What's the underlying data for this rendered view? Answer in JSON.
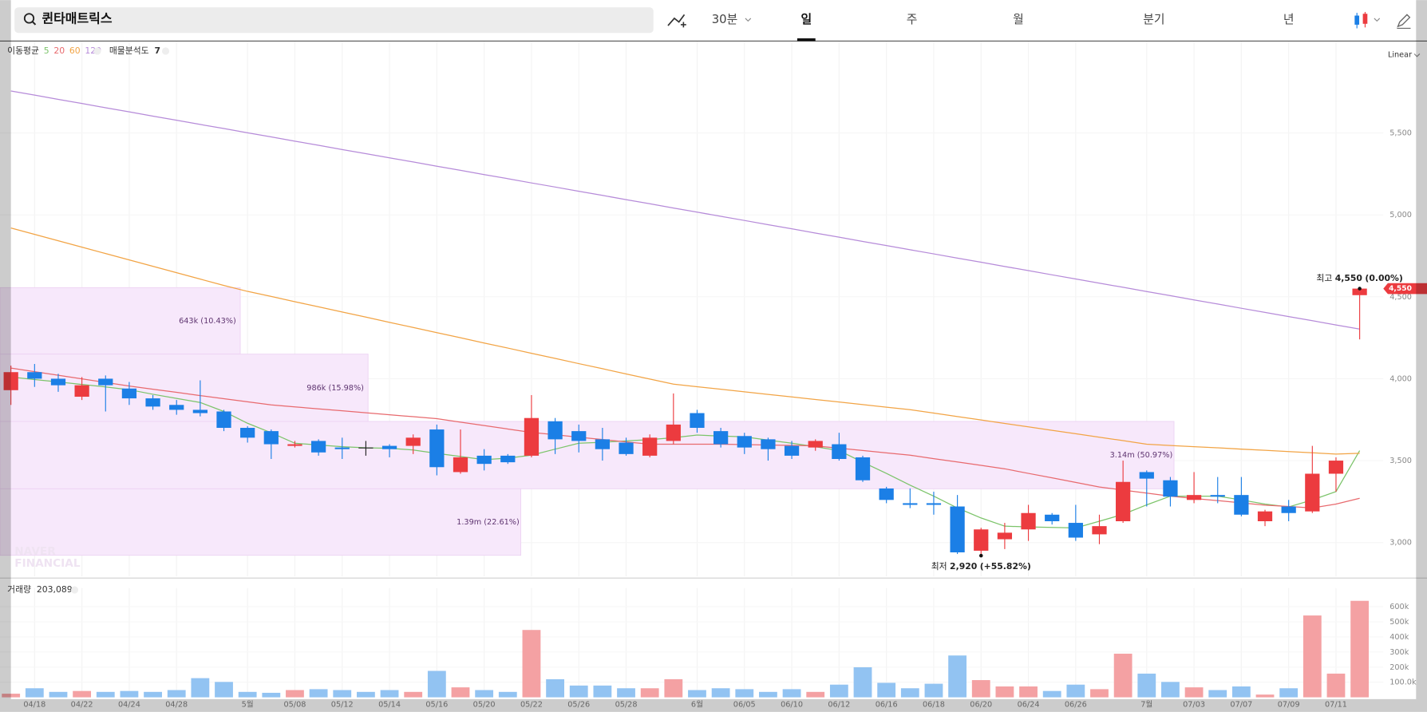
{
  "ui": {
    "search": "퀸타매트릭스",
    "interval": "30분",
    "tabs": [
      "일",
      "주",
      "월",
      "분기",
      "년"
    ],
    "scale": "Linear",
    "watermark": [
      "NAVER",
      "FINANCIAL"
    ]
  },
  "chart_data": [
    {
      "type": "candlestick",
      "ma_label": "이동평균",
      "categories": [
        null,
        "04/18",
        null,
        "04/22",
        null,
        "04/24",
        null,
        "04/28",
        null,
        null,
        "5월",
        null,
        "05/08",
        null,
        "05/12",
        null,
        "05/14",
        null,
        "05/16",
        null,
        "05/20",
        null,
        "05/22",
        null,
        "05/26",
        null,
        "05/28",
        null,
        null,
        "6월",
        null,
        "06/05",
        null,
        "06/10",
        null,
        "06/12",
        null,
        "06/16",
        null,
        "06/18",
        null,
        "06/20",
        null,
        "06/24",
        null,
        "06/26",
        null,
        null,
        "7월",
        null,
        "07/03",
        null,
        "07/07",
        null,
        "07/09",
        null,
        "07/11",
        null
      ],
      "open": [
        3930,
        4040,
        4000,
        3890,
        4000,
        3940,
        3880,
        3840,
        3810,
        3800,
        3700,
        3680,
        3590,
        3620,
        3580,
        3580,
        3590,
        3590,
        3690,
        3430,
        3530,
        3530,
        3530,
        3740,
        3680,
        3630,
        3610,
        3530,
        3620,
        3790,
        3680,
        3650,
        3630,
        3590,
        3580,
        3600,
        3520,
        3330,
        3240,
        3240,
        3220,
        2950,
        3020,
        3080,
        3170,
        3120,
        3050,
        3130,
        3430,
        3380,
        3260,
        3290,
        3290,
        3130,
        3220,
        3190,
        3420,
        4510
      ],
      "high": [
        4080,
        4090,
        4030,
        4010,
        4020,
        3980,
        3900,
        3870,
        3990,
        3810,
        3710,
        3690,
        3620,
        3630,
        3640,
        3620,
        3600,
        3660,
        3720,
        3690,
        3570,
        3540,
        3900,
        3760,
        3720,
        3700,
        3640,
        3660,
        3910,
        3810,
        3700,
        3670,
        3640,
        3620,
        3630,
        3670,
        3530,
        3340,
        3330,
        3310,
        3290,
        3090,
        3120,
        3230,
        3180,
        3230,
        3170,
        3500,
        3440,
        3400,
        3430,
        3400,
        3400,
        3200,
        3260,
        3590,
        3520,
        4550
      ],
      "low": [
        3840,
        3950,
        3920,
        3870,
        3800,
        3840,
        3810,
        3780,
        3770,
        3680,
        3610,
        3510,
        3580,
        3530,
        3510,
        3530,
        3520,
        3540,
        3410,
        3420,
        3440,
        3480,
        3520,
        3540,
        3550,
        3500,
        3530,
        3520,
        3600,
        3670,
        3580,
        3540,
        3500,
        3510,
        3560,
        3500,
        3370,
        3240,
        3210,
        3170,
        2930,
        2920,
        2960,
        3010,
        3110,
        3010,
        2990,
        3120,
        3220,
        3220,
        3240,
        3240,
        3160,
        3100,
        3130,
        3180,
        3310,
        4240
      ],
      "close": [
        4040,
        4000,
        3960,
        3960,
        3960,
        3880,
        3830,
        3810,
        3790,
        3700,
        3640,
        3600,
        3600,
        3550,
        3570,
        3580,
        3570,
        3640,
        3460,
        3520,
        3480,
        3490,
        3760,
        3630,
        3620,
        3570,
        3540,
        3640,
        3720,
        3700,
        3600,
        3580,
        3570,
        3530,
        3620,
        3510,
        3380,
        3260,
        3230,
        3230,
        2940,
        3080,
        3060,
        3180,
        3130,
        3030,
        3100,
        3370,
        3390,
        3280,
        3290,
        3280,
        3170,
        3190,
        3180,
        3420,
        3500,
        4550
      ],
      "up_color": "#ec3b3f",
      "down_color": "#1b7fe6",
      "flat_color": "#222222",
      "series": [
        {
          "name": "5",
          "color": "#7cc46a",
          "values": [
            4010,
            3995,
            3980,
            3965,
            3950,
            3933,
            3905,
            3880,
            3855,
            3800,
            3728,
            3670,
            3606,
            3595,
            3585,
            3578,
            3575,
            3565,
            3544,
            3525,
            3506,
            3515,
            3533,
            3570,
            3606,
            3612,
            3620,
            3628,
            3640,
            3656,
            3650,
            3645,
            3625,
            3606,
            3585,
            3561,
            3490,
            3422,
            3350,
            3283,
            3211,
            3150,
            3100,
            3095,
            3092,
            3089,
            3130,
            3172,
            3230,
            3283,
            3283,
            3283,
            3260,
            3235,
            3217,
            3260,
            3311,
            3561
          ]
        },
        {
          "name": "20",
          "color": "#e86a6e",
          "values": [
            4065,
            4043,
            4021,
            3999,
            3977,
            3955,
            3936,
            3917,
            3897,
            3878,
            3859,
            3840,
            3828,
            3816,
            3804,
            3792,
            3780,
            3768,
            3756,
            3735,
            3714,
            3693,
            3672,
            3658,
            3643,
            3629,
            3614,
            3600,
            3600,
            3600,
            3600,
            3598,
            3595,
            3593,
            3590,
            3576,
            3562,
            3547,
            3533,
            3512,
            3492,
            3471,
            3450,
            3422,
            3395,
            3367,
            3339,
            3320,
            3302,
            3283,
            3269,
            3256,
            3242,
            3228,
            3220,
            3211,
            3235,
            3270
          ]
        },
        {
          "name": "60",
          "color": "#f2a445",
          "values": [
            4920,
            4881,
            4842,
            4803,
            4764,
            4725,
            4686,
            4647,
            4608,
            4569,
            4533,
            4502,
            4470,
            4439,
            4407,
            4376,
            4344,
            4313,
            4281,
            4250,
            4218,
            4187,
            4155,
            4124,
            4092,
            4061,
            4029,
            3998,
            3967,
            3951,
            3936,
            3920,
            3904,
            3889,
            3873,
            3858,
            3842,
            3826,
            3811,
            3790,
            3769,
            3748,
            3727,
            3706,
            3685,
            3664,
            3643,
            3622,
            3600,
            3592,
            3585,
            3578,
            3570,
            3563,
            3555,
            3548,
            3540,
            3545
          ]
        },
        {
          "name": "120",
          "color": "#b68bd9",
          "values": [
            5756,
            5731,
            5705,
            5680,
            5654,
            5629,
            5603,
            5578,
            5552,
            5527,
            5501,
            5476,
            5450,
            5425,
            5399,
            5374,
            5348,
            5323,
            5297,
            5272,
            5246,
            5221,
            5195,
            5170,
            5144,
            5119,
            5093,
            5068,
            5042,
            5017,
            4991,
            4966,
            4940,
            4915,
            4889,
            4864,
            4838,
            4813,
            4787,
            4762,
            4736,
            4711,
            4685,
            4660,
            4634,
            4609,
            4583,
            4558,
            4532,
            4507,
            4481,
            4456,
            4430,
            4405,
            4379,
            4354,
            4328,
            4303
          ]
        }
      ],
      "ylim": [
        2794,
        6061
      ],
      "yticks": [
        {
          "value": 3000,
          "label": "3,000"
        },
        {
          "value": 3500,
          "label": "3,500"
        },
        {
          "value": 4000,
          "label": "4,000"
        },
        {
          "value": 4500,
          "label": "4,500"
        },
        {
          "value": 5000,
          "label": "5,000"
        },
        {
          "value": 5500,
          "label": "5,500"
        }
      ],
      "grid": true,
      "volume_profile": {
        "title": "매물분석도",
        "count": "7",
        "color": "#f7e8fb",
        "bins": [
          {
            "low": 4150,
            "high": 4556,
            "percent": 10.43,
            "label": "643k (10.43%)"
          },
          {
            "low": 3739,
            "high": 4150,
            "percent": 15.98,
            "label": "986k (15.98%)"
          },
          {
            "low": 3328,
            "high": 3739,
            "percent": 50.97,
            "label": "3.14m (50.97%)"
          },
          {
            "low": 2922,
            "high": 3328,
            "percent": 22.61,
            "label": "1.39m (22.61%)"
          }
        ]
      },
      "annotations": [
        {
          "prefix": "최고",
          "index": 57,
          "value": 4550,
          "label": "4,550",
          "change": "(0.00%)",
          "position": "above"
        },
        {
          "prefix": "최저",
          "index": 41,
          "value": 2920,
          "label": "2,920",
          "change": "(+55.82%)",
          "position": "below"
        }
      ],
      "last_price": {
        "value": 4550,
        "label": "4,550"
      }
    },
    {
      "type": "bar",
      "title": "거래량",
      "current": "203,089",
      "up_color": "#f4a1a3",
      "down_color": "#92c3f2",
      "values": [
        24000,
        60000,
        36000,
        42000,
        36000,
        42000,
        36000,
        48000,
        127000,
        102000,
        36000,
        30000,
        48000,
        54000,
        48000,
        36000,
        48000,
        36000,
        175000,
        66000,
        48000,
        36000,
        446000,
        120000,
        78000,
        78000,
        60000,
        60000,
        120000,
        48000,
        60000,
        54000,
        36000,
        54000,
        36000,
        84000,
        199000,
        96000,
        60000,
        90000,
        277000,
        114000,
        72000,
        72000,
        42000,
        84000,
        54000,
        289000,
        157000,
        102000,
        66000,
        48000,
        72000,
        18000,
        60000,
        542000,
        157000,
        639000
      ],
      "ylim": [
        0,
        663000
      ],
      "yticks": [
        {
          "value": 100000,
          "label": "100.0k"
        },
        {
          "value": 200000,
          "label": "200k"
        },
        {
          "value": 300000,
          "label": "300k"
        },
        {
          "value": 400000,
          "label": "400k"
        },
        {
          "value": 500000,
          "label": "500k"
        },
        {
          "value": 600000,
          "label": "600k"
        }
      ]
    }
  ]
}
